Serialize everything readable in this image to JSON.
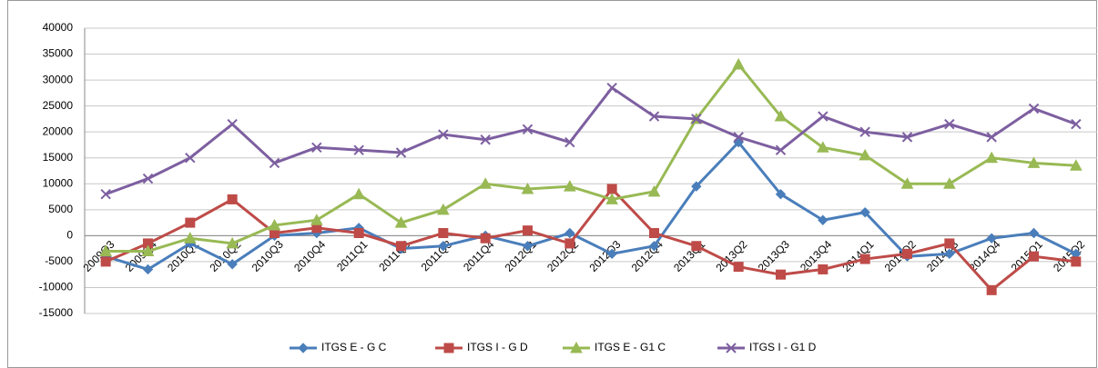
{
  "chart_data": {
    "type": "line",
    "categories": [
      "2009Q3",
      "2009Q4",
      "2010Q1",
      "2010Q2",
      "2010Q3",
      "2010Q4",
      "2011Q1",
      "2011Q2",
      "2011Q3",
      "2011Q4",
      "2012Q1",
      "2012Q2",
      "2012Q3",
      "2012Q4",
      "2013Q1",
      "2013Q2",
      "2013Q3",
      "2013Q4",
      "2014Q1",
      "2014Q2",
      "2014Q3",
      "2014Q4",
      "2015Q1",
      "2015Q2"
    ],
    "series": [
      {
        "name": "ITGS E - G C",
        "color": "#4a7ebb",
        "marker": "diamond",
        "values": [
          -4000,
          -6500,
          -1500,
          -5500,
          0,
          500,
          1500,
          -2500,
          -2000,
          0,
          -2000,
          500,
          -3500,
          -2000,
          9500,
          18000,
          8000,
          3000,
          4500,
          -4000,
          -3500,
          -500,
          500,
          -3500
        ]
      },
      {
        "name": "ITGS I - G D",
        "color": "#be4b48",
        "marker": "square",
        "values": [
          -5000,
          -1500,
          2500,
          7000,
          500,
          1500,
          500,
          -2000,
          500,
          -500,
          1000,
          -1500,
          9000,
          500,
          -2000,
          -6000,
          -7500,
          -6500,
          -4500,
          -3500,
          -1500,
          -10500,
          -4000,
          -5000
        ]
      },
      {
        "name": "ITGS E - G1 C",
        "color": "#98b954",
        "marker": "triangle",
        "values": [
          -3000,
          -3000,
          -500,
          -1500,
          2000,
          3000,
          8000,
          2500,
          5000,
          10000,
          9000,
          9500,
          7000,
          8500,
          22500,
          33000,
          23000,
          17000,
          15500,
          10000,
          10000,
          15000,
          14000,
          13500
        ]
      },
      {
        "name": "ITGS I - G1 D",
        "color": "#7d5fa0",
        "marker": "x",
        "values": [
          8000,
          11000,
          15000,
          21500,
          14000,
          17000,
          16500,
          16000,
          19500,
          18500,
          20500,
          18000,
          28500,
          23000,
          22500,
          19000,
          16500,
          23000,
          20000,
          19000,
          21500,
          19000,
          24500,
          21500
        ]
      }
    ],
    "ylim": [
      -15000,
      40000
    ],
    "yticks": [
      -15000,
      -10000,
      -5000,
      0,
      5000,
      10000,
      15000,
      20000,
      25000,
      30000,
      35000,
      40000
    ],
    "grid": true,
    "legend": "bottom"
  }
}
